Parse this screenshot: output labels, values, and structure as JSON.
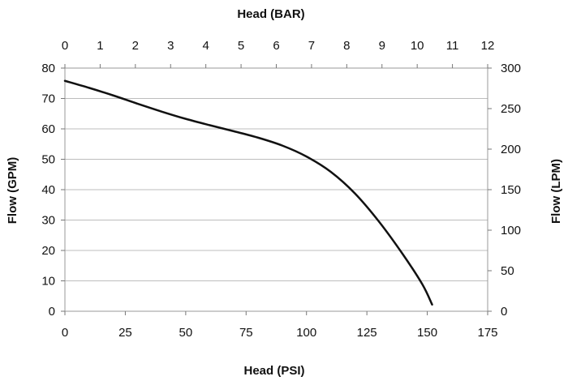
{
  "chart_data": {
    "type": "line",
    "title": "",
    "xlabel": "Head (PSI)",
    "x2label": "Head (BAR)",
    "ylabel": "Flow (GPM)",
    "y2label": "Flow (LPM)",
    "xlim": [
      0,
      175
    ],
    "x2lim": [
      0,
      12
    ],
    "ylim": [
      0,
      80
    ],
    "y2lim": [
      0,
      300
    ],
    "xticks": [
      0,
      25,
      50,
      75,
      100,
      125,
      150,
      175
    ],
    "x2ticks": [
      0,
      1,
      2,
      3,
      4,
      5,
      6,
      7,
      8,
      9,
      10,
      11,
      12
    ],
    "yticks": [
      0,
      10,
      20,
      30,
      40,
      50,
      60,
      70,
      80
    ],
    "y2ticks": [
      0,
      50,
      100,
      150,
      200,
      250,
      300
    ],
    "grid": true,
    "series": [
      {
        "color": "#111111",
        "x": [
          0,
          10,
          20,
          30,
          40,
          50,
          60,
          70,
          80,
          90,
          100,
          110,
          120,
          130,
          140,
          148,
          152
        ],
        "y": [
          75.8,
          73.5,
          71,
          68.3,
          65.7,
          63.3,
          61.2,
          59.2,
          57.1,
          54.5,
          50.9,
          45.9,
          38.8,
          29.5,
          18.6,
          8.8,
          2.2
        ]
      }
    ]
  }
}
